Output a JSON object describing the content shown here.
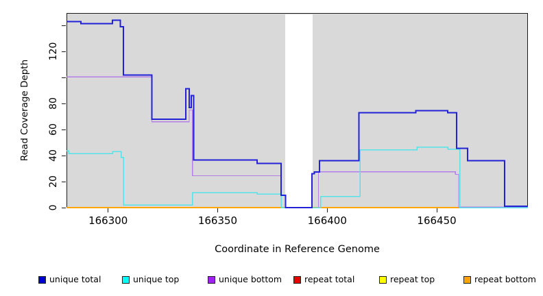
{
  "chart_data": {
    "type": "line",
    "subtype": "step-coverage-plot",
    "title": "",
    "xlabel": "Coordinate in Reference Genome",
    "ylabel": "Read Coverage Depth",
    "xlim": [
      166281,
      166491.6
    ],
    "ylim": [
      0,
      149.6
    ],
    "grid": false,
    "plot_bg_color": "#d9d9d9",
    "gap_region": {
      "x_start": 166380.5,
      "x_end": 166393.1,
      "color": "#ffffff"
    },
    "x_ticks": [
      {
        "value": 166300,
        "label": "166300"
      },
      {
        "value": 166350,
        "label": "166350"
      },
      {
        "value": 166400,
        "label": "166400"
      },
      {
        "value": 166450,
        "label": "166450"
      }
    ],
    "y_ticks": [
      {
        "value": 0,
        "label": "0"
      },
      {
        "value": 20,
        "label": "20"
      },
      {
        "value": 40,
        "label": "40"
      },
      {
        "value": 60,
        "label": "60"
      },
      {
        "value": 80,
        "label": "80"
      },
      {
        "value": 100,
        "label": ""
      },
      {
        "value": 120,
        "label": "120"
      },
      {
        "value": 140,
        "label": ""
      }
    ],
    "legend_position": "bottom",
    "legend": [
      {
        "label": "unique total",
        "color": "#0000cc"
      },
      {
        "label": "unique top",
        "color": "#00ffff"
      },
      {
        "label": "unique bottom",
        "color": "#a021f0"
      },
      {
        "label": "repeat total",
        "color": "#e80000"
      },
      {
        "label": "repeat top",
        "color": "#ffff00"
      },
      {
        "label": "repeat bottom",
        "color": "#ffa500"
      }
    ],
    "x_end": 166491.6,
    "series": [
      {
        "name": "repeat total",
        "color": "#e80000",
        "width": 1.2,
        "steps": [
          [
            166281,
            0
          ]
        ]
      },
      {
        "name": "repeat top",
        "color": "#ffff00",
        "width": 1.2,
        "steps": [
          [
            166281,
            0
          ]
        ]
      },
      {
        "name": "repeat bottom",
        "color": "#ffa500",
        "width": 1.8,
        "steps": [
          [
            166281,
            0
          ]
        ]
      },
      {
        "name": "unique bottom",
        "color": "#b27ee6",
        "width": 1.2,
        "steps": [
          [
            166281,
            100.5
          ],
          [
            166320,
            66
          ],
          [
            166337,
            75
          ],
          [
            166338.5,
            24.5
          ],
          [
            166379,
            0
          ],
          [
            166396,
            27.5
          ],
          [
            166458.5,
            25.5
          ],
          [
            166460,
            0.4
          ]
        ]
      },
      {
        "name": "unique top",
        "color": "#55e2e8",
        "width": 1.5,
        "steps": [
          [
            166281,
            43.5
          ],
          [
            166282,
            41.5
          ],
          [
            166302,
            43
          ],
          [
            166306,
            38.5
          ],
          [
            166307,
            2
          ],
          [
            166338.5,
            11.5
          ],
          [
            166368,
            10.5
          ],
          [
            166379,
            0
          ],
          [
            166397,
            8.5
          ],
          [
            166415,
            44.5
          ],
          [
            166441,
            46.5
          ],
          [
            166455,
            45
          ],
          [
            166460.5,
            0
          ]
        ]
      },
      {
        "name": "unique total",
        "color": "#2121d6",
        "width": 2,
        "steps": [
          [
            166281,
            143
          ],
          [
            166287.5,
            141.5
          ],
          [
            166302,
            144
          ],
          [
            166305.5,
            139
          ],
          [
            166307,
            102
          ],
          [
            166320,
            68
          ],
          [
            166335.5,
            91.5
          ],
          [
            166337,
            77
          ],
          [
            166338,
            86
          ],
          [
            166339,
            36.5
          ],
          [
            166368,
            34
          ],
          [
            166379,
            9.5
          ],
          [
            166381,
            0
          ],
          [
            166393,
            26
          ],
          [
            166394.2,
            27.5
          ],
          [
            166396.5,
            36
          ],
          [
            166414.5,
            73
          ],
          [
            166440.5,
            74.5
          ],
          [
            166455,
            73
          ],
          [
            166459,
            45.5
          ],
          [
            166464,
            36
          ],
          [
            166481,
            1
          ]
        ]
      }
    ]
  }
}
